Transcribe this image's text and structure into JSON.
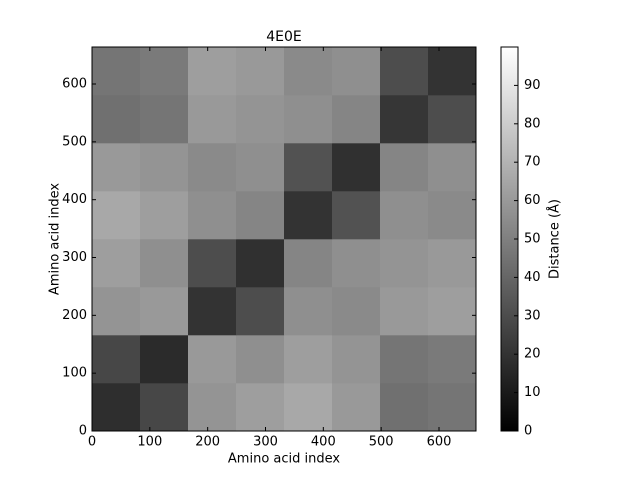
{
  "chart_data": {
    "type": "heatmap",
    "title": "4E0E",
    "xlabel": "Amino acid index",
    "ylabel": "Amino acid index",
    "colorbar_label": "Distance (Å)",
    "colormap": "gray",
    "xlim": [
      0,
      664
    ],
    "ylim": [
      0,
      664
    ],
    "xticks": [
      0,
      100,
      200,
      300,
      400,
      500,
      600
    ],
    "yticks": [
      0,
      100,
      200,
      300,
      400,
      500,
      600
    ],
    "clim": [
      0,
      100
    ],
    "cticks": [
      0,
      10,
      20,
      30,
      40,
      50,
      60,
      70,
      80,
      90
    ],
    "matrix": [
      [
        18,
        28,
        58,
        62,
        66,
        60,
        44,
        46
      ],
      [
        28,
        17,
        60,
        56,
        62,
        58,
        46,
        48
      ],
      [
        58,
        60,
        20,
        30,
        56,
        54,
        60,
        62
      ],
      [
        62,
        56,
        30,
        19,
        52,
        56,
        58,
        60
      ],
      [
        66,
        62,
        56,
        52,
        20,
        32,
        56,
        54
      ],
      [
        60,
        58,
        54,
        56,
        32,
        19,
        52,
        56
      ],
      [
        44,
        46,
        60,
        58,
        56,
        52,
        21,
        30
      ],
      [
        46,
        48,
        62,
        60,
        54,
        56,
        30,
        20
      ]
    ]
  }
}
